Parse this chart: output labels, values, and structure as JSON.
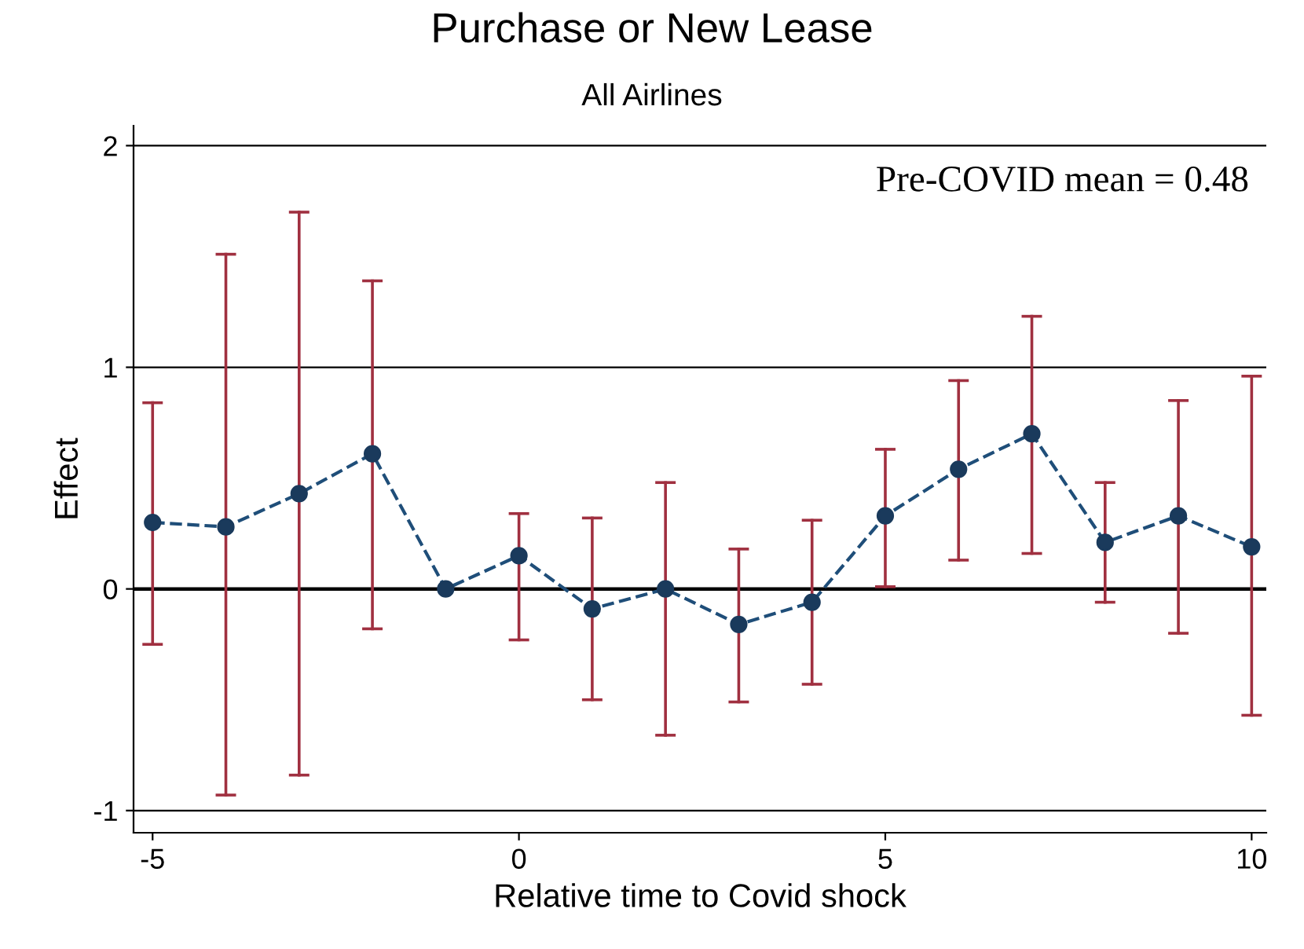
{
  "chart_data": {
    "type": "line",
    "title": "Purchase or New Lease",
    "subtitle": "All Airlines",
    "xlabel": "Relative time to Covid shock",
    "ylabel": "Effect",
    "x": [
      -5,
      -4,
      -3,
      -2,
      -1,
      0,
      1,
      2,
      3,
      4,
      5,
      6,
      7,
      8,
      9,
      10
    ],
    "series": [
      {
        "color": "#1f4e79",
        "values": [
          0.3,
          0.28,
          0.43,
          0.61,
          0.0,
          0.15,
          -0.09,
          0.0,
          -0.16,
          -0.06,
          0.33,
          0.54,
          0.7,
          0.21,
          0.33,
          0.19
        ],
        "errors": [
          [
            -0.25,
            0.84
          ],
          [
            -0.93,
            1.51
          ],
          [
            -0.84,
            1.7
          ],
          [
            -0.18,
            1.39
          ],
          null,
          [
            -0.23,
            0.34
          ],
          [
            -0.5,
            0.32
          ],
          [
            -0.66,
            0.48
          ],
          [
            -0.51,
            0.18
          ],
          [
            -0.43,
            0.31
          ],
          [
            0.01,
            0.63
          ],
          [
            0.13,
            0.94
          ],
          [
            0.16,
            1.23
          ],
          [
            -0.06,
            0.48
          ],
          [
            -0.2,
            0.85
          ],
          [
            -0.57,
            0.96
          ]
        ]
      }
    ],
    "marker": "circle",
    "line_style": "dashed",
    "grid": "y",
    "xlim": [
      -5.26,
      10.2
    ],
    "ylim": [
      -1.1,
      2.09
    ],
    "xticks": [
      -5,
      0,
      5,
      10
    ],
    "yticks": [
      -1,
      0,
      1,
      2
    ],
    "ref_lines": [
      {
        "axis": "y",
        "value": 0,
        "color": "#000000"
      }
    ],
    "annotations": [
      "Pre-COVID mean = 0.48"
    ]
  }
}
